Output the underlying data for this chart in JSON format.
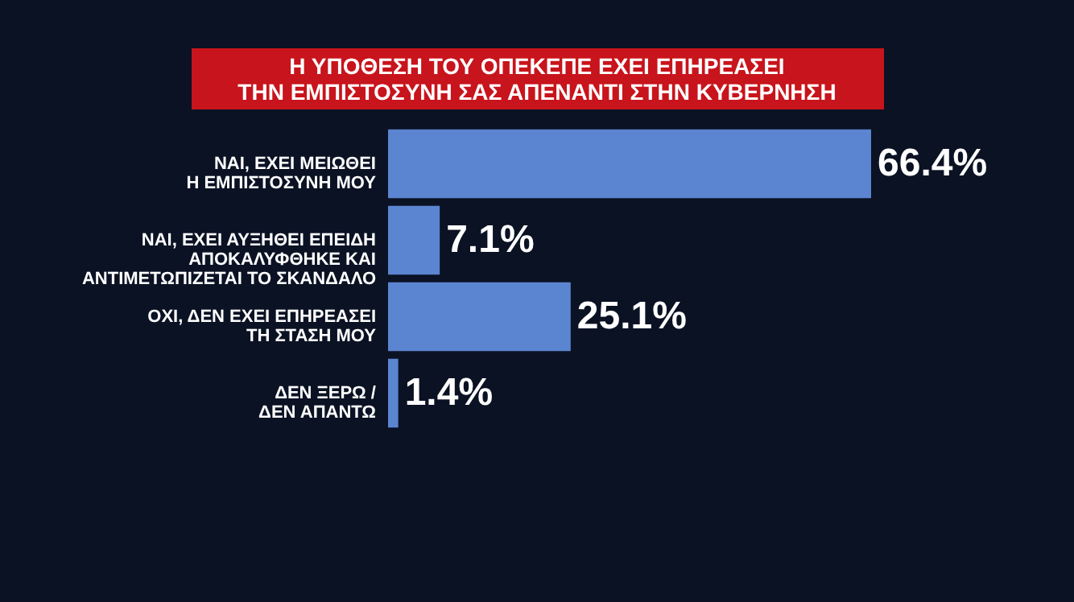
{
  "chart_data": {
    "type": "bar",
    "orientation": "horizontal",
    "title": "Η ΥΠΟΘΕΣΗ ΤΟΥ ΟΠΕΚΕΠΕ ΕΧΕΙ ΕΠΗΡΕΑΣΕΙ\nΤΗΝ ΕΜΠΙΣΤΟΣΥΝΗ ΣΑΣ ΑΠΕΝΑΝΤΙ ΣΤΗΝ ΚΥΒΕΡΝΗΣΗ",
    "categories": [
      "ΝΑΙ, ΕΧΕΙ ΜΕΙΩΘΕΙ\nΗ ΕΜΠΙΣΤΟΣΥΝΗ ΜΟΥ",
      "ΝΑΙ, ΕΧΕΙ ΑΥΞΗΘΕΙ ΕΠΕΙΔΗ\nΑΠΟΚΑΛΥΦΘΗΚΕ ΚΑΙ\nΑΝΤΙΜΕΤΩΠΙΖΕΤΑΙ ΤΟ ΣΚΑΝΔΑΛΟ",
      "ΟΧΙ, ΔΕΝ ΕΧΕΙ ΕΠΗΡΕΑΣΕΙ\nΤΗ ΣΤΑΣΗ ΜΟΥ",
      "ΔΕΝ ΞΕΡΩ /\nΔΕΝ ΑΠΑΝΤΩ"
    ],
    "values": [
      66.4,
      7.1,
      25.1,
      1.4
    ],
    "value_labels": [
      "66.4%",
      "7.1%",
      "25.1%",
      "1.4%"
    ],
    "color": "#5b85d0"
  }
}
